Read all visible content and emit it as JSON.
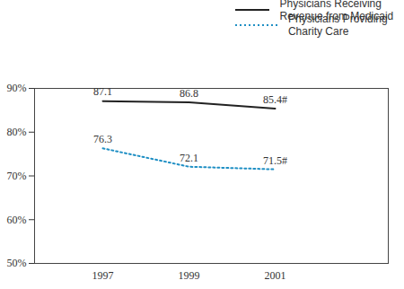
{
  "chart_data": {
    "type": "line",
    "categories": [
      "1997",
      "1999",
      "2001"
    ],
    "series": [
      {
        "name": "Physicians Receiving Revenue from Medicaid",
        "color": "#222222",
        "line_style": "solid",
        "values": [
          87.1,
          86.8,
          85.4
        ],
        "value_labels": [
          "87.1",
          "86.8",
          "85.4#"
        ]
      },
      {
        "name": "Physicians Providing Charity Care",
        "color": "#1f8fc4",
        "line_style": "dotted",
        "values": [
          76.3,
          72.1,
          71.5
        ],
        "value_labels": [
          "76.3",
          "72.1",
          "71.5#"
        ]
      }
    ],
    "ylim": [
      50,
      90
    ],
    "yticks": [
      {
        "value": 50,
        "label": "50%"
      },
      {
        "value": 60,
        "label": "60%"
      },
      {
        "value": 70,
        "label": "70%"
      },
      {
        "value": 80,
        "label": "80%"
      },
      {
        "value": 90,
        "label": "90%"
      }
    ],
    "data_labels": true,
    "grid": false,
    "legend": "top"
  }
}
